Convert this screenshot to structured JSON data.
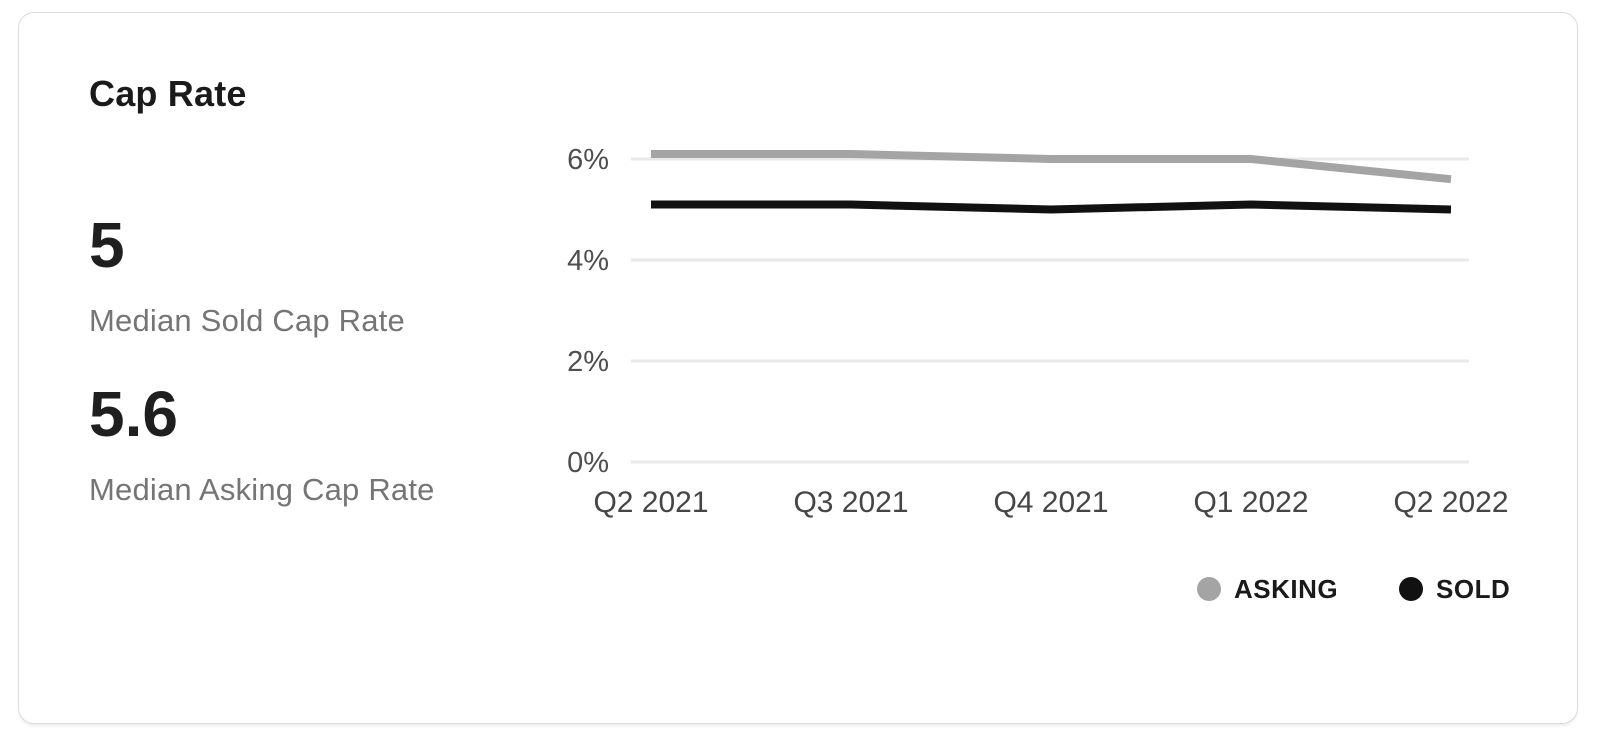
{
  "card": {
    "title": "Cap Rate",
    "stats": [
      {
        "value": "5",
        "label": "Median Sold Cap Rate"
      },
      {
        "value": "5.6",
        "label": "Median Asking Cap Rate"
      }
    ]
  },
  "chart_data": {
    "type": "line",
    "title": "Cap Rate",
    "categories": [
      "Q2 2021",
      "Q3 2021",
      "Q4 2021",
      "Q1 2022",
      "Q2 2022"
    ],
    "series": [
      {
        "name": "ASKING",
        "color": "#a4a4a4",
        "values": [
          6.1,
          6.1,
          6.0,
          6.0,
          5.6
        ]
      },
      {
        "name": "SOLD",
        "color": "#111111",
        "values": [
          5.1,
          5.1,
          5.0,
          5.1,
          5.0
        ]
      }
    ],
    "xlabel": "",
    "ylabel": "",
    "y_axis": {
      "ticks": [
        {
          "label": "6%",
          "value": 6
        },
        {
          "label": "4%",
          "value": 4
        },
        {
          "label": "2%",
          "value": 2
        },
        {
          "label": "0%",
          "value": 0
        }
      ],
      "format": "percent"
    },
    "ylim": [
      0,
      6
    ],
    "grid": "horizontal",
    "legend_position": "bottom-right"
  },
  "colors": {
    "gridline": "#e9e9e9",
    "axis_tick_text": "#4f4f4f",
    "axis_label_text": "#454545",
    "legend_text": "#1a1a1a",
    "card_border": "#dcdcdc",
    "title_text": "#1a1a1a",
    "stat_value_text": "#1f1f1f",
    "stat_label_text": "#757575"
  }
}
